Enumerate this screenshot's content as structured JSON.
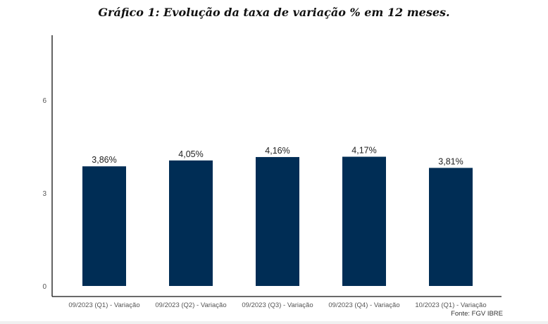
{
  "title": "Gráfico 1: Evolução da taxa de variação % em 12 meses.",
  "source": "Fonte: FGV IBRE",
  "chart_data": {
    "type": "bar",
    "title": "Gráfico 1: Evolução da taxa de variação % em 12 meses.",
    "categories": [
      "09/2023 (Q1) - Variação",
      "09/2023 (Q2) - Variação",
      "09/2023 (Q3) - Variação",
      "09/2023 (Q4) - Variação",
      "10/2023 (Q1) - Variação"
    ],
    "values": [
      3.86,
      4.05,
      4.16,
      4.17,
      3.81
    ],
    "data_labels": [
      "3,86%",
      "4,05%",
      "4,16%",
      "4,17%",
      "3,81%"
    ],
    "yticks": [
      "0",
      "3",
      "6"
    ],
    "ytick_values": [
      0,
      3,
      6
    ],
    "ylim": [
      0,
      8
    ],
    "xlabel": "",
    "ylabel": "",
    "bar_color": "#002d55",
    "grid": false,
    "legend": "none"
  }
}
